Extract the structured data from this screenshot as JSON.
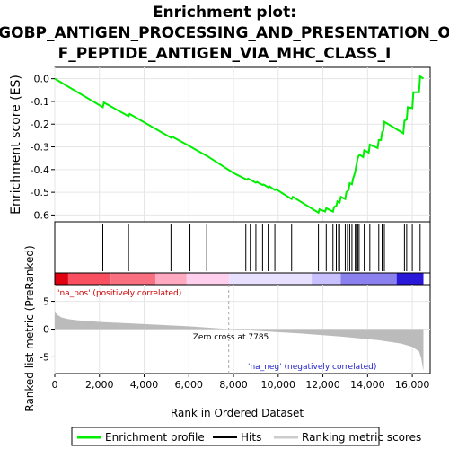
{
  "chart_data": {
    "type": "line",
    "title_lines": [
      "Enrichment plot:",
      "GOBP_ANTIGEN_PROCESSING_AND_PRESENTATION_O",
      "F_PEPTIDE_ANTIGEN_VIA_MHC_CLASS_I"
    ],
    "es_panel": {
      "ylabel": "Enrichment score (ES)",
      "ylim": [
        -0.63,
        0.05
      ],
      "yticks": [
        0.0,
        -0.1,
        -0.2,
        -0.3,
        -0.4,
        -0.5,
        -0.6
      ],
      "ytick_labels": [
        "0.0",
        "-0.1",
        "-0.2",
        "-0.3",
        "-0.4",
        "-0.5",
        "-0.6"
      ],
      "grid": true,
      "series_color": "#00ee00",
      "x": [
        0,
        2150,
        2200,
        3300,
        3350,
        5200,
        5250,
        6000,
        6050,
        6800,
        6850,
        8000,
        8600,
        8650,
        9000,
        9050,
        9300,
        9350,
        9550,
        9600,
        9850,
        9900,
        10600,
        10650,
        11800,
        11850,
        12100,
        12150,
        12450,
        12500,
        12600,
        12650,
        12750,
        12800,
        13000,
        13050,
        13150,
        13200,
        13300,
        13350,
        13450,
        13480,
        13520,
        13560,
        13600,
        13650,
        13800,
        13850,
        14050,
        14100,
        14450,
        14500,
        14600,
        14650,
        14700,
        14750,
        15600,
        15650,
        15750,
        15800,
        16000,
        16050,
        16300,
        16350,
        16500
      ],
      "y": [
        0.0,
        -0.125,
        -0.105,
        -0.165,
        -0.155,
        -0.26,
        -0.255,
        -0.295,
        -0.298,
        -0.34,
        -0.342,
        -0.415,
        -0.445,
        -0.44,
        -0.458,
        -0.455,
        -0.468,
        -0.466,
        -0.478,
        -0.474,
        -0.49,
        -0.486,
        -0.53,
        -0.52,
        -0.59,
        -0.575,
        -0.585,
        -0.57,
        -0.585,
        -0.565,
        -0.56,
        -0.54,
        -0.545,
        -0.52,
        -0.53,
        -0.5,
        -0.49,
        -0.46,
        -0.465,
        -0.44,
        -0.41,
        -0.39,
        -0.37,
        -0.35,
        -0.34,
        -0.335,
        -0.345,
        -0.315,
        -0.325,
        -0.29,
        -0.305,
        -0.27,
        -0.27,
        -0.235,
        -0.23,
        -0.19,
        -0.24,
        -0.185,
        -0.18,
        -0.125,
        -0.13,
        -0.06,
        -0.06,
        0.01,
        0.0
      ]
    },
    "hits": [
      2150,
      3300,
      5200,
      6050,
      6800,
      8550,
      8750,
      9000,
      9300,
      9550,
      9850,
      10600,
      11800,
      12150,
      12450,
      12600,
      12700,
      12750,
      13000,
      13100,
      13200,
      13300,
      13450,
      13500,
      13560,
      13620,
      13850,
      14100,
      14500,
      14650,
      14750,
      15650,
      15750,
      16000,
      16350
    ],
    "rank_panel": {
      "ylabel": "Ranked list metric (PreRanked)",
      "ylim": [
        -8,
        8
      ],
      "yticks": [
        5,
        0,
        -5
      ],
      "ytick_labels": [
        "5",
        "0",
        "-5"
      ],
      "color": "#bbbbbb",
      "x": [
        0,
        100,
        300,
        600,
        1000,
        2000,
        4000,
        6000,
        7785,
        9000,
        11000,
        13000,
        14500,
        15500,
        16000,
        16300,
        16400,
        16500
      ],
      "y": [
        3.3,
        2.6,
        2.1,
        1.8,
        1.6,
        1.3,
        0.9,
        0.5,
        0.0,
        -0.3,
        -0.8,
        -1.4,
        -2.0,
        -2.6,
        -3.2,
        -4.0,
        -5.2,
        -7.5
      ]
    },
    "xlabel": "Rank in Ordered Dataset",
    "xlim": [
      0,
      16800
    ],
    "xticks": [
      0,
      2000,
      4000,
      6000,
      8000,
      10000,
      12000,
      14000,
      16000
    ],
    "xtick_labels": [
      "0",
      "2,000",
      "4,000",
      "6,000",
      "8,000",
      "10,000",
      "12,000",
      "14,000",
      "16,000"
    ],
    "zero_cross": 7785,
    "zero_cross_label": "Zero cross at 7785",
    "pos_label": "'na_pos' (positively correlated)",
    "neg_label": "'na_neg' (negatively correlated)",
    "heatmap_colors": [
      "#e00010",
      "#f85060",
      "#ff9aa8",
      "#ffd0ee",
      "#e8e0ff",
      "#c8c0ff",
      "#8a80ee",
      "#2a18d8"
    ],
    "heatmap_stops": [
      0,
      600,
      2500,
      4500,
      5900,
      7800,
      11500,
      12800,
      15300,
      16500
    ],
    "legend": [
      {
        "label": "Enrichment profile",
        "color": "#00ee00"
      },
      {
        "label": "Hits",
        "color": "#000000"
      },
      {
        "label": "Ranking metric scores",
        "color": "#cccccc"
      }
    ]
  }
}
